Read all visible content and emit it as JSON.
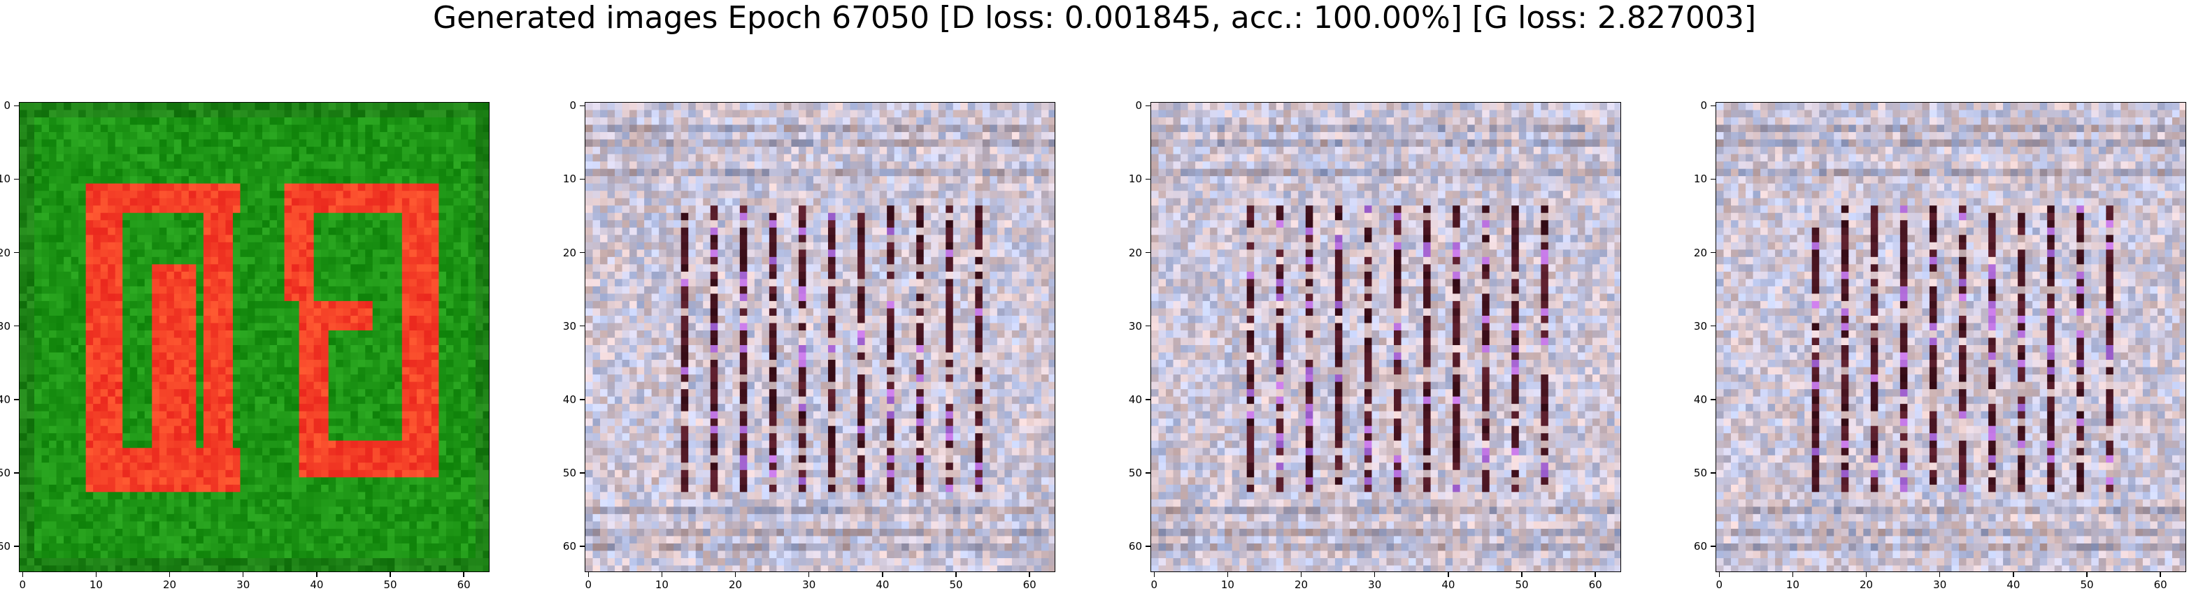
{
  "title": "Generated images Epoch 67050 [D loss: 0.001845, acc.: 100.00%] [G loss: 2.827003]",
  "chart_data": {
    "type": "heatmap",
    "description_kind": "image-grid",
    "images": [
      {
        "style": "green-red",
        "base_color": "#1f8a1a",
        "accent_color": "#ff3b2a"
      },
      {
        "style": "noise-grid",
        "base_color": "#d6ccd9",
        "accent_color": "#4a0f14"
      },
      {
        "style": "noise-grid",
        "base_color": "#d6ccd9",
        "accent_color": "#4a0f14"
      },
      {
        "style": "noise-grid",
        "base_color": "#d6ccd9",
        "accent_color": "#4a0f14"
      }
    ],
    "xlim": [
      -0.5,
      63.5
    ],
    "ylim": [
      63.5,
      -0.5
    ],
    "x_ticks": [
      0,
      10,
      20,
      30,
      40,
      50,
      60
    ],
    "y_ticks": [
      0,
      10,
      20,
      30,
      40,
      50,
      60
    ]
  }
}
